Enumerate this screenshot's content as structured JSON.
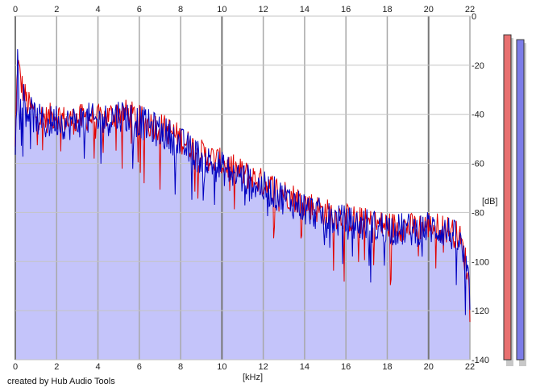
{
  "chart_data": {
    "type": "line",
    "x_unit": "[kHz]",
    "y_unit": "[dB]",
    "xlim": [
      0,
      22
    ],
    "ylim": [
      -140,
      0
    ],
    "x_ticks": [
      0,
      2,
      4,
      6,
      8,
      10,
      12,
      14,
      16,
      18,
      20,
      22
    ],
    "y_ticks": [
      0,
      -20,
      -40,
      -60,
      -80,
      -100,
      -120,
      -140
    ],
    "grid": true,
    "series": [
      {
        "color": "#e00000",
        "x": [
          0,
          0.1,
          0.3,
          0.6,
          1.0,
          1.5,
          2.0,
          2.5,
          3.0,
          3.5,
          4.0,
          4.5,
          5.0,
          5.5,
          6.0,
          6.5,
          7.0,
          7.5,
          8.0,
          8.5,
          9.0,
          9.5,
          10.0,
          10.5,
          11.0,
          11.5,
          12.0,
          12.5,
          13.0,
          13.5,
          14.0,
          14.5,
          15.0,
          15.5,
          16.0,
          16.5,
          17.0,
          17.5,
          18.0,
          18.5,
          19.0,
          19.5,
          20.0,
          20.5,
          21.0,
          21.5,
          21.8,
          22.0
        ],
        "y": [
          -55,
          -18,
          -28,
          -36,
          -40,
          -42,
          -40,
          -43,
          -42,
          -41,
          -42,
          -41,
          -39,
          -40,
          -42,
          -44,
          -45,
          -47,
          -50,
          -53,
          -56,
          -58,
          -60,
          -62,
          -64,
          -66,
          -68,
          -70,
          -72,
          -74,
          -76,
          -78,
          -80,
          -81,
          -82,
          -83,
          -84,
          -85,
          -85,
          -86,
          -86,
          -86,
          -85,
          -86,
          -87,
          -90,
          -100,
          -112
        ],
        "noise": 6
      },
      {
        "color": "#0000c0",
        "x": [
          0,
          0.1,
          0.3,
          0.6,
          1.0,
          1.5,
          2.0,
          2.5,
          3.0,
          3.5,
          4.0,
          4.5,
          5.0,
          5.5,
          6.0,
          6.5,
          7.0,
          7.5,
          8.0,
          8.5,
          9.0,
          9.5,
          10.0,
          10.5,
          11.0,
          11.5,
          12.0,
          12.5,
          13.0,
          13.5,
          14.0,
          14.5,
          15.0,
          15.5,
          16.0,
          16.5,
          17.0,
          17.5,
          18.0,
          18.5,
          19.0,
          19.5,
          20.0,
          20.5,
          21.0,
          21.5,
          21.8,
          22.0
        ],
        "y": [
          -50,
          -16,
          -30,
          -38,
          -42,
          -44,
          -42,
          -44,
          -43,
          -42,
          -43,
          -42,
          -40,
          -41,
          -43,
          -45,
          -47,
          -49,
          -52,
          -55,
          -58,
          -60,
          -62,
          -64,
          -66,
          -68,
          -70,
          -72,
          -74,
          -76,
          -78,
          -80,
          -82,
          -83,
          -84,
          -85,
          -85,
          -86,
          -86,
          -87,
          -87,
          -87,
          -86,
          -87,
          -88,
          -92,
          -102,
          -114
        ],
        "noise": 7
      }
    ],
    "level_meters": [
      {
        "color": "#e87070",
        "level_db": -3
      },
      {
        "color": "#7c7ce8",
        "level_db": -5
      }
    ]
  },
  "footer": {
    "credit": "created by Hub Audio Tools"
  }
}
